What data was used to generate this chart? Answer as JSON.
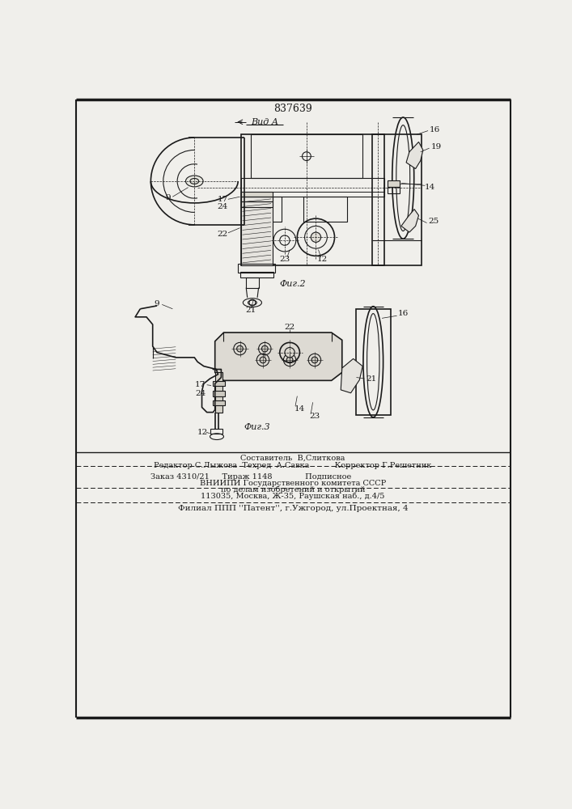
{
  "title": "837639",
  "fig2_label": "Фиг.2",
  "fig3_label": "Фиг.3",
  "vid_a_label": "Вид А",
  "footer_line0": "Составитель  В,Слиткова",
  "footer_line1": "Редактор С.Лыжова  Техред  А.Савка          Корректор Г.Решетник",
  "footer_line2": "Заказ 4310/21     Тираж 1148             Подписное",
  "footer_line3": "ВНИИПИ Государственного комитета СССР",
  "footer_line4": "по делам изобретений и открытий",
  "footer_line5": "113035, Москва, Ж-35, Раушская наб., д.4/5",
  "footer_line6": "Филиал ППП ''Патент'', г.Ужгород, ул.Проектная, 4",
  "bg_color": "#f0efeb",
  "line_color": "#1a1a1a"
}
